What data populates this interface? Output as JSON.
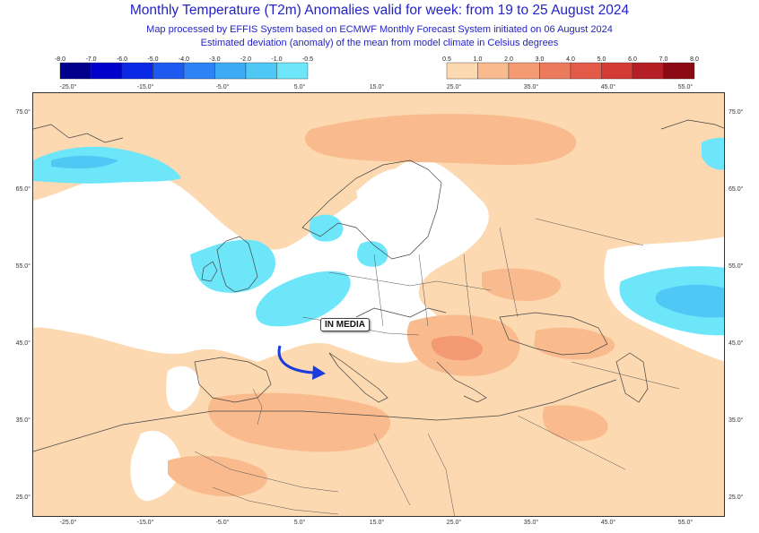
{
  "header": {
    "title": "Monthly Temperature (T2m) Anomalies valid for week: from 19 to 25 August 2024",
    "subtitle_1": "Map processed by EFFIS System based on ECMWF Monthly Forecast System initiated on 06 August 2024",
    "subtitle_2": "Estimated deviation (anomaly) of the mean from model climate in Celsius degrees"
  },
  "legend": {
    "negative": {
      "labels": [
        "-8.0",
        "-7.0",
        "-6.0",
        "-5.0",
        "-4.0",
        "-3.0",
        "-2.0",
        "-1.0",
        "-0.5"
      ],
      "colors": [
        "#00008c",
        "#0000cc",
        "#0a28e6",
        "#1e5af0",
        "#2d82f5",
        "#3caaf5",
        "#50c8f5",
        "#6ee6fa"
      ]
    },
    "positive": {
      "labels": [
        "0.5",
        "1.0",
        "2.0",
        "3.0",
        "4.0",
        "5.0",
        "6.0",
        "7.0",
        "8.0"
      ],
      "colors": [
        "#fcd9b0",
        "#f9bb8e",
        "#f39a72",
        "#ec7a5c",
        "#e45a48",
        "#d43a36",
        "#b41e24",
        "#8c0a14"
      ]
    }
  },
  "map": {
    "top_lon_labels": [
      "-25.0°",
      "-15.0°",
      "-5.0°",
      "5.0°",
      "15.0°",
      "25.0°",
      "35.0°",
      "45.0°",
      "55.0°"
    ],
    "bottom_lon_labels": [
      "-25.0°",
      "-15.0°",
      "-5.0°",
      "5.0°",
      "15.0°",
      "25.0°",
      "35.0°",
      "45.0°",
      "55.0°"
    ],
    "lat_labels": [
      "75.0°",
      "65.0°",
      "55.0°",
      "45.0°",
      "35.0°",
      "25.0°"
    ],
    "annotation": "IN MEDIA",
    "colors": {
      "positive_light": "#fcd9b0",
      "positive_mid": "#f9bb8e",
      "positive_strong": "#f39a72",
      "negative_light": "#6ee6fa",
      "negative_mid": "#50c8f5",
      "negative_strong": "#3caaf5",
      "arrow": "#1a3cdc"
    }
  }
}
